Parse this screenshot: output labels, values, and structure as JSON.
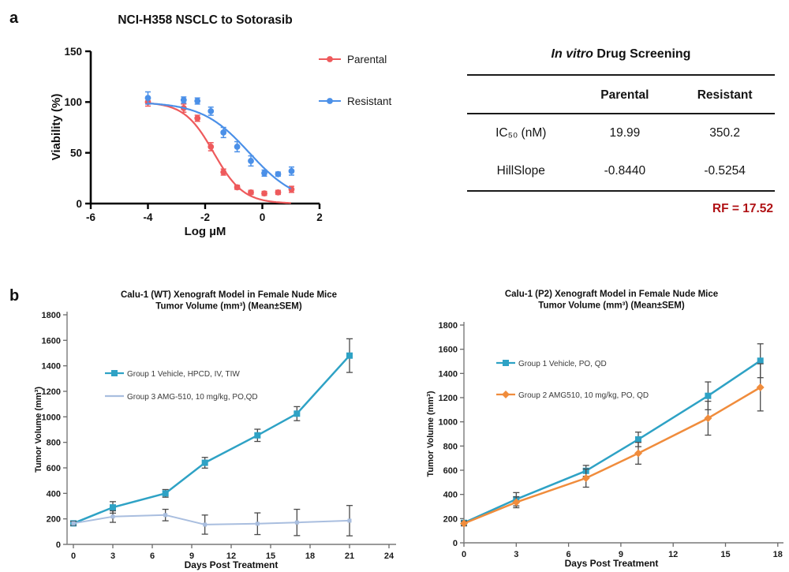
{
  "panel_labels": {
    "a": "a",
    "b": "b"
  },
  "table": {
    "title_italic": "In vitro",
    "title_rest": " Drug Screening",
    "col_headers": [
      "Parental",
      "Resistant"
    ],
    "rows": [
      {
        "label": "IC₅₀ (nM)",
        "values": [
          "19.99",
          "350.2"
        ]
      },
      {
        "label": "HillSlope",
        "values": [
          "-0.8440",
          "-0.5254"
        ]
      }
    ],
    "footnote": "RF = 17.52",
    "footnote_color": "#B01215"
  },
  "chart_data": [
    {
      "type": "scatter",
      "panel": "a",
      "title": "NCI-H358 NSCLC to Sotorasib",
      "xlabel": "Log µM",
      "ylabel": "Viability (%)",
      "xlim": [
        -6,
        2
      ],
      "xticks": [
        -6,
        -4,
        -2,
        0,
        2
      ],
      "ylim": [
        0,
        150
      ],
      "yticks": [
        0,
        50,
        100,
        150
      ],
      "legend_position": "right",
      "grid": false,
      "series": [
        {
          "name": "Parental",
          "color": "#EE5A5C",
          "marker": "circle",
          "x": [
            -4,
            -2.75,
            -2.27,
            -1.8,
            -1.36,
            -0.88,
            -0.4,
            0.07,
            0.55,
            1.02
          ],
          "y": [
            100,
            94,
            84,
            56,
            31,
            16,
            11,
            10,
            11,
            14
          ],
          "err": [
            4,
            4,
            3,
            4,
            3,
            2,
            2,
            2,
            2,
            3
          ],
          "fit": {
            "top": 100,
            "bottom": 0,
            "logIC50": -1.699,
            "hillslope": -0.844
          }
        },
        {
          "name": "Resistant",
          "color": "#4B90E8",
          "marker": "circle",
          "x": [
            -4,
            -2.75,
            -2.27,
            -1.8,
            -1.36,
            -0.88,
            -0.4,
            0.07,
            0.55,
            1.02
          ],
          "y": [
            104,
            102,
            101,
            91,
            70,
            56,
            42,
            30,
            29,
            32
          ],
          "err": [
            6,
            3,
            3,
            4,
            5,
            5,
            5,
            3,
            2,
            4
          ],
          "fit": {
            "top": 100,
            "bottom": 0,
            "logIC50": -0.4557,
            "hillslope": -0.5254
          }
        }
      ]
    },
    {
      "type": "line",
      "panel": "b-left",
      "title_line1": "Calu-1 (WT) Xenograft Model in Female Nude Mice",
      "title_line2": "Tumor Volume (mm³) (Mean±SEM)",
      "xlabel": "Days Post Treatment",
      "ylabel": "Tumor Volume (mm³)",
      "xlim": [
        0,
        24
      ],
      "xticks": [
        0,
        3,
        6,
        9,
        12,
        15,
        18,
        21,
        24
      ],
      "ylim": [
        0,
        1800
      ],
      "yticks": [
        0,
        200,
        400,
        600,
        800,
        1000,
        1200,
        1400,
        1600,
        1800
      ],
      "grid": false,
      "series": [
        {
          "name": "Group 1 Vehicle, HPCD, IV, TIW",
          "color": "#2EA2C5",
          "marker": "square",
          "x": [
            0,
            3,
            7,
            10,
            14,
            17,
            21
          ],
          "y": [
            165,
            290,
            400,
            640,
            855,
            1025,
            1480
          ],
          "err": [
            18,
            45,
            30,
            42,
            48,
            55,
            132
          ]
        },
        {
          "name": "Group 3 AMG-510, 10 mg/kg, PO,QD",
          "color": "#A9BEDF",
          "marker": "tick",
          "x": [
            0,
            3,
            7,
            10,
            14,
            17,
            21
          ],
          "y": [
            165,
            218,
            230,
            155,
            162,
            172,
            186
          ],
          "err": [
            15,
            45,
            45,
            75,
            85,
            103,
            119
          ]
        }
      ]
    },
    {
      "type": "line",
      "panel": "b-right",
      "title_line1": "Calu-1 (P2) Xenograft Model in Female Nude Mice",
      "title_line2": "Tumor Volume (mm³) (Mean±SEM)",
      "xlabel": "Days Post Treatment",
      "ylabel": "Tumor Volume (mm³)",
      "xlim": [
        0,
        18
      ],
      "xticks": [
        0,
        3,
        6,
        9,
        12,
        15,
        18
      ],
      "ylim": [
        0,
        1800
      ],
      "yticks": [
        0,
        200,
        400,
        600,
        800,
        1000,
        1200,
        1400,
        1600,
        1800
      ],
      "grid": false,
      "series": [
        {
          "name": "Group 1 Vehicle, PO, QD",
          "color": "#2EA2C5",
          "marker": "square",
          "x": [
            0,
            3,
            7,
            10,
            14,
            17
          ],
          "y": [
            165,
            360,
            595,
            855,
            1215,
            1505
          ],
          "err": [
            20,
            55,
            45,
            60,
            115,
            140
          ]
        },
        {
          "name": "Group 2 AMG510, 10 mg/kg, PO, QD",
          "color": "#F08C3C",
          "marker": "diamond",
          "x": [
            0,
            3,
            7,
            10,
            14,
            17
          ],
          "y": [
            160,
            335,
            535,
            740,
            1030,
            1285
          ],
          "err": [
            20,
            45,
            75,
            90,
            140,
            195
          ]
        }
      ]
    }
  ]
}
